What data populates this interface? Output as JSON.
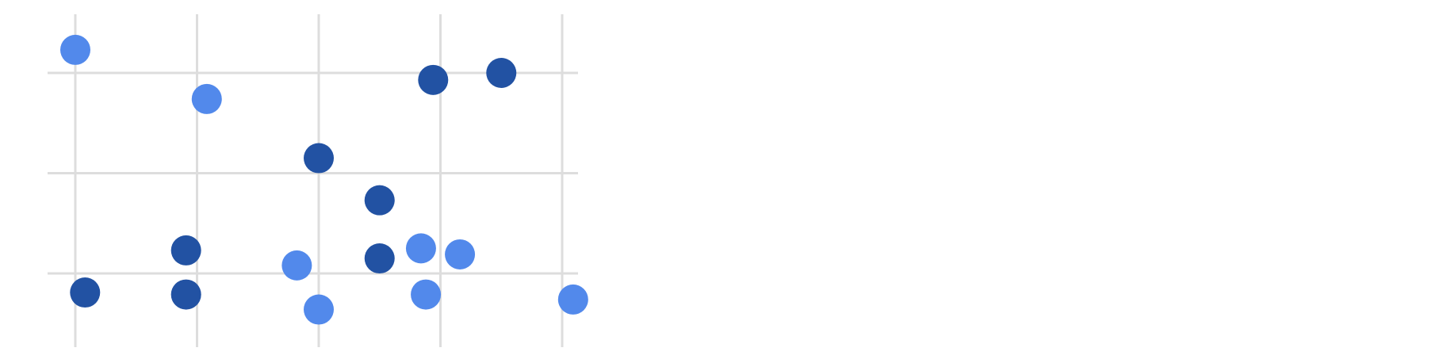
{
  "chart_data": {
    "type": "scatter",
    "title": "",
    "xlabel": "",
    "ylabel": "",
    "grid": true,
    "legend": "none",
    "xlim": [
      -0.25,
      4.1
    ],
    "ylim": [
      -0.75,
      2.6
    ],
    "x_gridlines": [
      0,
      1,
      2,
      3,
      4
    ],
    "y_gridlines": [
      0,
      1,
      2
    ],
    "series": [
      {
        "color": "#5289eb",
        "points": [
          {
            "x": 0.0,
            "y": 2.23
          },
          {
            "x": 1.08,
            "y": 1.74
          },
          {
            "x": 1.82,
            "y": 0.08
          },
          {
            "x": 2.0,
            "y": -0.36
          },
          {
            "x": 2.84,
            "y": 0.25
          },
          {
            "x": 2.88,
            "y": -0.21
          },
          {
            "x": 3.16,
            "y": 0.19
          },
          {
            "x": 4.09,
            "y": -0.26
          }
        ]
      },
      {
        "color": "#2252a3",
        "points": [
          {
            "x": 0.08,
            "y": -0.19
          },
          {
            "x": 0.91,
            "y": 0.23
          },
          {
            "x": 0.91,
            "y": -0.21
          },
          {
            "x": 2.0,
            "y": 1.15
          },
          {
            "x": 2.5,
            "y": 0.73
          },
          {
            "x": 2.5,
            "y": 0.15
          },
          {
            "x": 2.94,
            "y": 1.93
          },
          {
            "x": 3.5,
            "y": 2.0
          }
        ]
      }
    ]
  }
}
